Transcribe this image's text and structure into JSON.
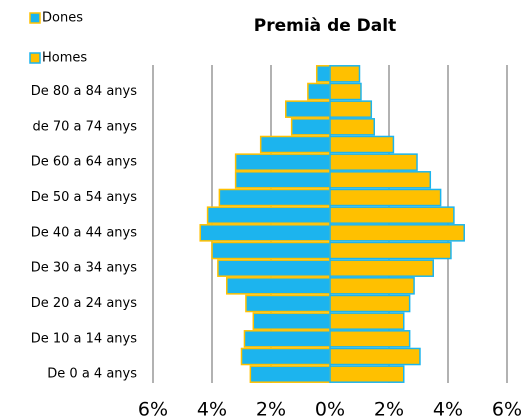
{
  "chart_data": {
    "type": "pyramid",
    "title": "Premià de Dalt",
    "categories": [
      "De 0 a 4 anys",
      null,
      "De 10 a 14 anys",
      null,
      "De 20 a 24 anys",
      null,
      "De 30 a 34 anys",
      null,
      "De 40 a 44 anys",
      null,
      "De 50 a 54 anys",
      null,
      "De 60 a 64 anys",
      null,
      "de 70 a 74 anys",
      null,
      "De 80 a 84 anys",
      null
    ],
    "series": [
      {
        "name": "Dones",
        "color": "#1cb4ee",
        "values": [
          -2.7,
          -3.0,
          -2.9,
          -2.6,
          -2.85,
          -3.5,
          -3.8,
          -4.0,
          -4.4,
          -4.15,
          -3.75,
          -3.2,
          -3.2,
          -2.35,
          -1.3,
          -1.5,
          -0.75,
          -0.45
        ]
      },
      {
        "name": "Homes",
        "color": "#ffc000",
        "values": [
          2.5,
          3.05,
          2.7,
          2.5,
          2.7,
          2.85,
          3.5,
          4.1,
          4.55,
          4.2,
          3.75,
          3.4,
          2.95,
          2.15,
          1.5,
          1.4,
          1.05,
          1.0
        ]
      }
    ],
    "xlim": [
      -6,
      6
    ],
    "xticks": [
      {
        "value": -6,
        "label": "6%"
      },
      {
        "value": -4,
        "label": "4%"
      },
      {
        "value": -2,
        "label": "2%"
      },
      {
        "value": 0,
        "label": "0%"
      },
      {
        "value": 2,
        "label": "2%"
      },
      {
        "value": 4,
        "label": "4%"
      },
      {
        "value": 6,
        "label": "6%"
      }
    ],
    "grid": true
  }
}
